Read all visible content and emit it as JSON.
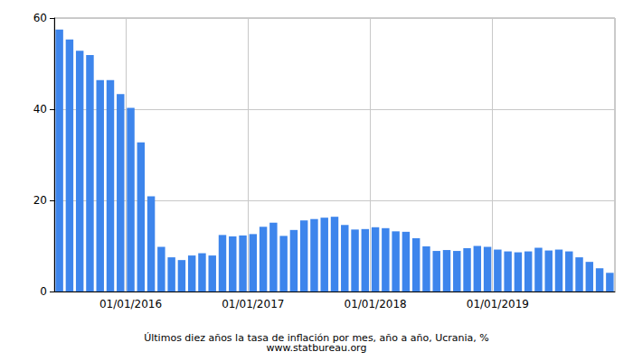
{
  "chart_data": {
    "type": "bar",
    "title": "Últimos diez años la tasa de inflación por mes, año a año, Ucrania, %",
    "subtitle": "www.statbureau.org",
    "categories": [
      null,
      null,
      null,
      null,
      null,
      null,
      null,
      "01/01/2016",
      null,
      null,
      null,
      null,
      null,
      null,
      null,
      null,
      null,
      null,
      null,
      "01/01/2017",
      null,
      null,
      null,
      null,
      null,
      null,
      null,
      null,
      null,
      null,
      null,
      "01/01/2018",
      null,
      null,
      null,
      null,
      null,
      null,
      null,
      null,
      null,
      null,
      null,
      "01/01/2019",
      null,
      null,
      null,
      null,
      null,
      null,
      null,
      null,
      null,
      null,
      null
    ],
    "values": [
      57.5,
      55.3,
      52.8,
      51.9,
      46.4,
      46.4,
      43.3,
      40.3,
      32.7,
      20.9,
      9.8,
      7.5,
      6.9,
      7.9,
      8.4,
      7.9,
      12.4,
      12.1,
      12.3,
      12.6,
      14.2,
      15.1,
      12.2,
      13.5,
      15.6,
      15.9,
      16.2,
      16.4,
      14.6,
      13.6,
      13.7,
      14.1,
      13.9,
      13.2,
      13.1,
      11.7,
      9.9,
      8.9,
      9.1,
      8.9,
      9.5,
      10.0,
      9.8,
      9.2,
      8.8,
      8.6,
      8.8,
      9.6,
      9.0,
      9.2,
      8.8,
      7.5,
      6.5,
      5.1,
      4.1
    ],
    "color": "#3d85ec",
    "ylim": [
      0,
      60
    ],
    "yticks": [
      0,
      20,
      40,
      60
    ],
    "grid": true
  }
}
